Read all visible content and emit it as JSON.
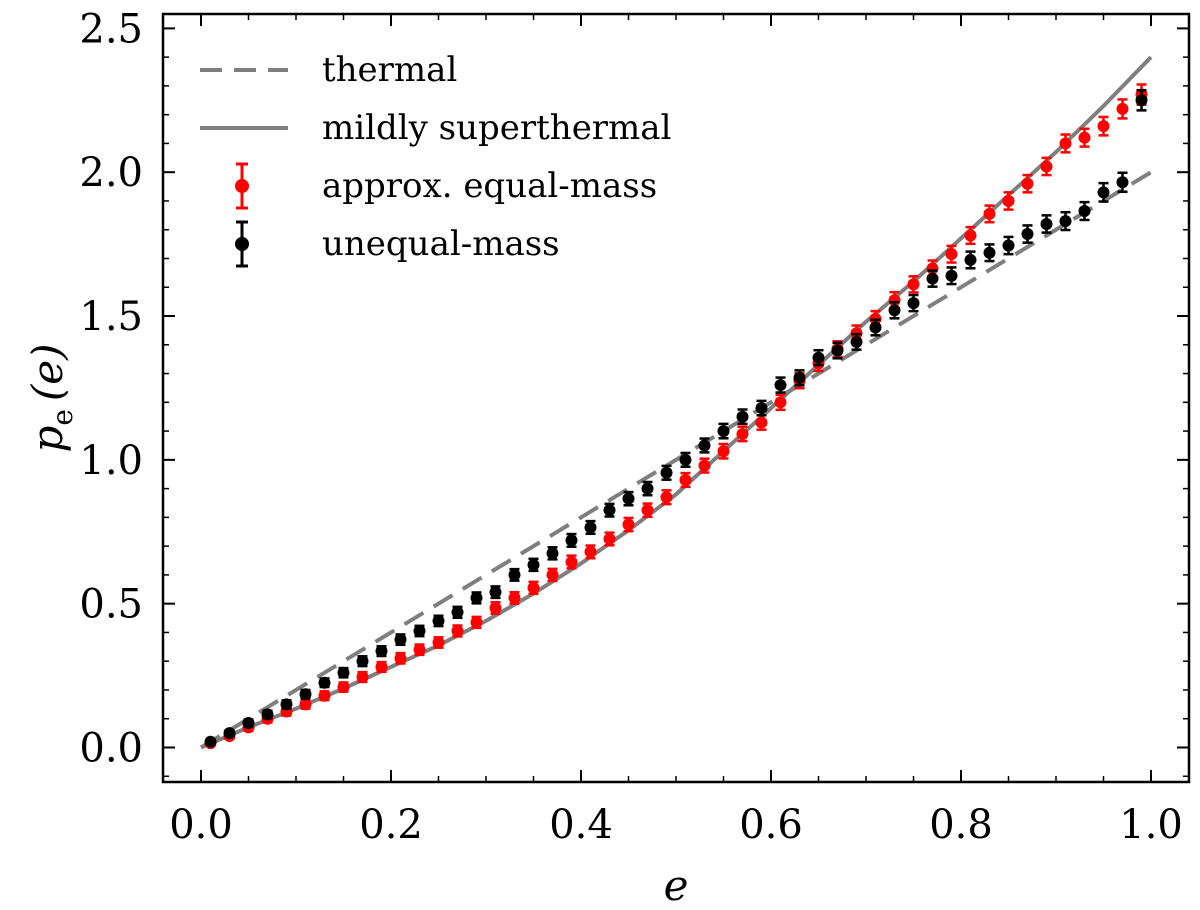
{
  "chart_data": {
    "type": "scatter",
    "xlabel": "e",
    "ylabel_main": "p",
    "ylabel_sub": "e",
    "ylabel_arg": "(e)",
    "xlim": [
      -0.04,
      1.04
    ],
    "ylim": [
      -0.12,
      2.55
    ],
    "xticks": [
      0.0,
      0.2,
      0.4,
      0.6,
      0.8,
      1.0
    ],
    "xtick_labels": [
      "0.0",
      "0.2",
      "0.4",
      "0.6",
      "0.8",
      "1.0"
    ],
    "yticks": [
      0.0,
      0.5,
      1.0,
      1.5,
      2.0,
      2.5
    ],
    "ytick_labels": [
      "0.0",
      "0.5",
      "1.0",
      "1.5",
      "2.0",
      "2.5"
    ],
    "legend_position": "top-left",
    "curves": [
      {
        "name": "thermal",
        "style": "dashed",
        "color": "#7f7f7f",
        "x": [
          0.0,
          1.0
        ],
        "y": [
          0.0,
          2.0
        ]
      },
      {
        "name": "mildly superthermal",
        "style": "solid",
        "color": "#7f7f7f",
        "x": [
          0.0,
          0.05,
          0.1,
          0.15,
          0.2,
          0.25,
          0.3,
          0.35,
          0.4,
          0.45,
          0.5,
          0.55,
          0.6,
          0.65,
          0.7,
          0.75,
          0.8,
          0.85,
          0.9,
          0.95,
          1.0
        ],
        "y": [
          0.0,
          0.07,
          0.135,
          0.205,
          0.28,
          0.355,
          0.44,
          0.535,
          0.64,
          0.755,
          0.88,
          1.03,
          1.18,
          1.33,
          1.48,
          1.62,
          1.77,
          1.92,
          2.07,
          2.23,
          2.4
        ]
      }
    ],
    "series": [
      {
        "name": "approx. equal-mass",
        "color": "#ff0000",
        "x": [
          0.01,
          0.03,
          0.05,
          0.07,
          0.09,
          0.11,
          0.13,
          0.15,
          0.17,
          0.19,
          0.21,
          0.23,
          0.25,
          0.27,
          0.29,
          0.31,
          0.33,
          0.35,
          0.37,
          0.39,
          0.41,
          0.43,
          0.45,
          0.47,
          0.49,
          0.51,
          0.53,
          0.55,
          0.57,
          0.59,
          0.61,
          0.63,
          0.65,
          0.67,
          0.69,
          0.71,
          0.73,
          0.75,
          0.77,
          0.79,
          0.81,
          0.83,
          0.85,
          0.87,
          0.89,
          0.91,
          0.93,
          0.95,
          0.97,
          0.99
        ],
        "y": [
          0.015,
          0.04,
          0.07,
          0.1,
          0.125,
          0.15,
          0.18,
          0.21,
          0.245,
          0.28,
          0.31,
          0.34,
          0.365,
          0.405,
          0.435,
          0.485,
          0.52,
          0.555,
          0.6,
          0.645,
          0.68,
          0.725,
          0.775,
          0.825,
          0.87,
          0.93,
          0.98,
          1.03,
          1.09,
          1.13,
          1.2,
          1.275,
          1.335,
          1.385,
          1.44,
          1.49,
          1.555,
          1.61,
          1.665,
          1.715,
          1.78,
          1.855,
          1.9,
          1.96,
          2.02,
          2.1,
          2.12,
          2.16,
          2.22,
          2.27
        ],
        "yerr": [
          0.008,
          0.01,
          0.012,
          0.013,
          0.014,
          0.015,
          0.015,
          0.016,
          0.017,
          0.017,
          0.018,
          0.018,
          0.018,
          0.019,
          0.019,
          0.02,
          0.02,
          0.021,
          0.021,
          0.022,
          0.022,
          0.022,
          0.023,
          0.023,
          0.024,
          0.024,
          0.024,
          0.025,
          0.025,
          0.025,
          0.026,
          0.026,
          0.026,
          0.027,
          0.027,
          0.027,
          0.028,
          0.028,
          0.028,
          0.029,
          0.029,
          0.029,
          0.03,
          0.03,
          0.03,
          0.031,
          0.031,
          0.032,
          0.033,
          0.035
        ]
      },
      {
        "name": "unequal-mass",
        "color": "#000000",
        "x": [
          0.01,
          0.03,
          0.05,
          0.07,
          0.09,
          0.11,
          0.13,
          0.15,
          0.17,
          0.19,
          0.21,
          0.23,
          0.25,
          0.27,
          0.29,
          0.31,
          0.33,
          0.35,
          0.37,
          0.39,
          0.41,
          0.43,
          0.45,
          0.47,
          0.49,
          0.51,
          0.53,
          0.55,
          0.57,
          0.59,
          0.61,
          0.63,
          0.65,
          0.67,
          0.69,
          0.71,
          0.73,
          0.75,
          0.77,
          0.79,
          0.81,
          0.83,
          0.85,
          0.87,
          0.89,
          0.91,
          0.93,
          0.95,
          0.97,
          0.99
        ],
        "y": [
          0.02,
          0.05,
          0.085,
          0.115,
          0.15,
          0.185,
          0.225,
          0.26,
          0.3,
          0.335,
          0.375,
          0.405,
          0.44,
          0.47,
          0.52,
          0.54,
          0.6,
          0.635,
          0.675,
          0.72,
          0.765,
          0.825,
          0.865,
          0.9,
          0.955,
          1.0,
          1.05,
          1.1,
          1.15,
          1.18,
          1.26,
          1.285,
          1.355,
          1.38,
          1.41,
          1.46,
          1.52,
          1.545,
          1.63,
          1.64,
          1.695,
          1.72,
          1.745,
          1.785,
          1.82,
          1.83,
          1.865,
          1.93,
          1.965,
          2.25
        ],
        "yerr": [
          0.008,
          0.01,
          0.012,
          0.013,
          0.014,
          0.015,
          0.015,
          0.016,
          0.017,
          0.017,
          0.018,
          0.018,
          0.018,
          0.019,
          0.019,
          0.02,
          0.02,
          0.021,
          0.021,
          0.022,
          0.022,
          0.022,
          0.023,
          0.023,
          0.024,
          0.024,
          0.024,
          0.025,
          0.025,
          0.025,
          0.026,
          0.026,
          0.026,
          0.027,
          0.027,
          0.027,
          0.028,
          0.028,
          0.028,
          0.029,
          0.029,
          0.029,
          0.03,
          0.03,
          0.03,
          0.031,
          0.031,
          0.032,
          0.033,
          0.035
        ]
      }
    ],
    "legend": [
      {
        "label": "thermal",
        "kind": "dashed",
        "color": "#7f7f7f"
      },
      {
        "label": "mildly superthermal",
        "kind": "solid",
        "color": "#7f7f7f"
      },
      {
        "label": "approx. equal-mass",
        "kind": "errorbar",
        "color": "#ff0000"
      },
      {
        "label": "unequal-mass",
        "kind": "errorbar",
        "color": "#000000"
      }
    ]
  }
}
